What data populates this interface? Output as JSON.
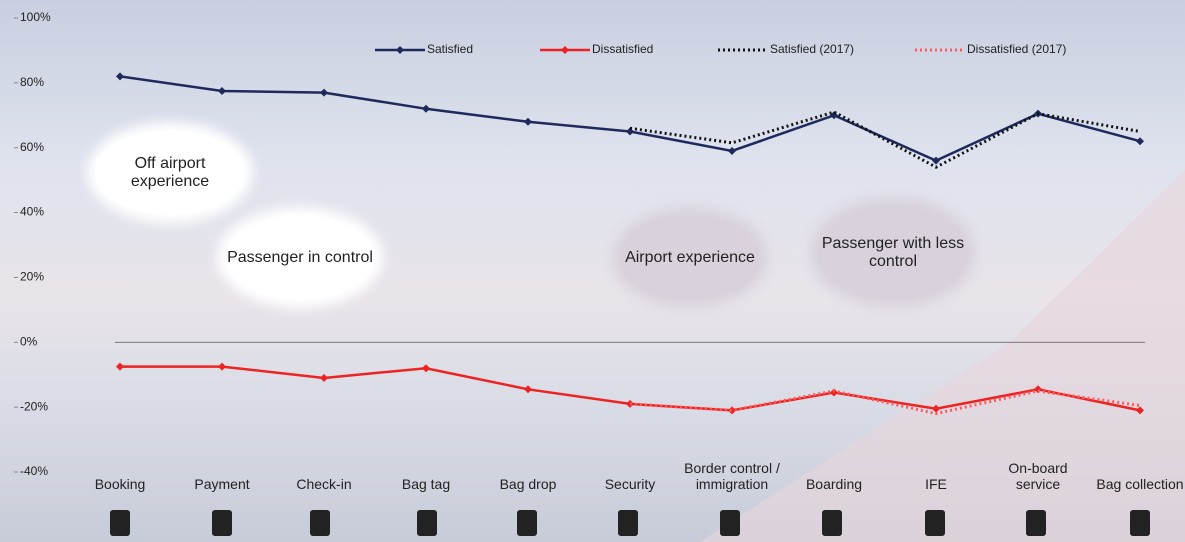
{
  "chart_data": {
    "type": "line",
    "categories": [
      "Booking",
      "Payment",
      "Check-in",
      "Bag tag",
      "Bag drop",
      "Security",
      "Border control / immigration",
      "Boarding",
      "IFE",
      "On-board service",
      "Bag collection"
    ],
    "series": [
      {
        "name": "Satisfied",
        "color": "#1f2a5c",
        "style": "solid",
        "values": [
          82,
          77.5,
          77,
          72,
          68,
          65,
          59,
          70,
          56,
          70.5,
          62
        ]
      },
      {
        "name": "Dissatisfied",
        "color": "#ee2222",
        "style": "solid",
        "values": [
          -7.5,
          -7.5,
          -11,
          -8,
          -14.5,
          -19,
          -21,
          -15.5,
          -20.5,
          -14.5,
          -21
        ]
      },
      {
        "name": "Satisfied (2017)",
        "color": "#111111",
        "style": "dotted",
        "values": [
          null,
          null,
          null,
          null,
          null,
          66,
          61.5,
          71,
          54,
          70.5,
          65
        ]
      },
      {
        "name": "Dissatisfied (2017)",
        "color": "#ff5a5a",
        "style": "dotted",
        "values": [
          null,
          null,
          null,
          null,
          null,
          -19,
          -21,
          -15,
          -22,
          -15,
          -19.5
        ]
      }
    ],
    "ylim": [
      -40,
      100
    ],
    "yticks": [
      {
        "value": -40,
        "label": "-40%"
      },
      {
        "value": -20,
        "label": "-20%"
      },
      {
        "value": 0,
        "label": "0%"
      },
      {
        "value": 20,
        "label": "20%"
      },
      {
        "value": 40,
        "label": "40%"
      },
      {
        "value": 60,
        "label": "60%"
      },
      {
        "value": 80,
        "label": "80%"
      },
      {
        "value": 100,
        "label": "100%"
      }
    ],
    "zero_line": true,
    "annotations": [
      "Off airport experience",
      "Passenger in control",
      "Airport experience",
      "Passenger with less control"
    ]
  }
}
